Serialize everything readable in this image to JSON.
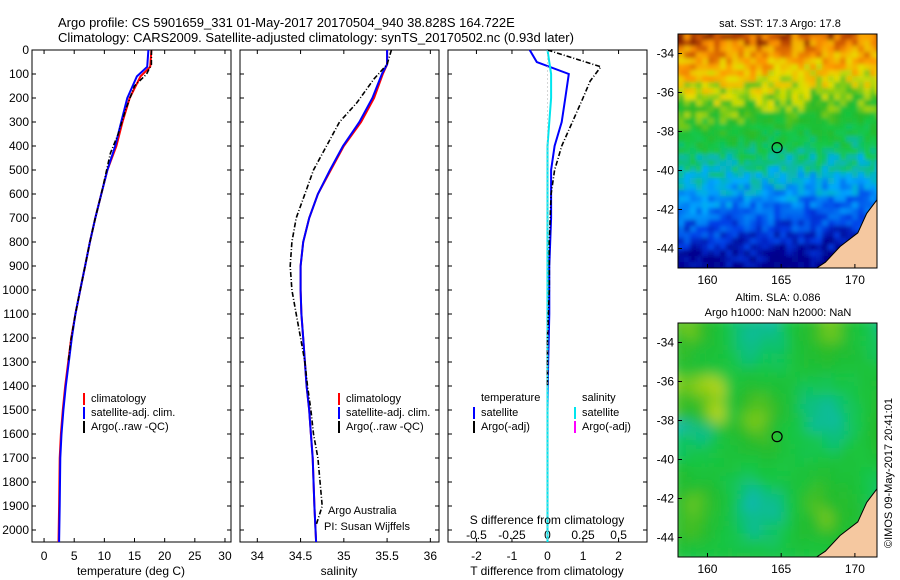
{
  "header": {
    "line1": "Argo profile: CS 5901659_331 01-May-2017 20170504_940 38.828S 164.722E",
    "line2": "Climatology: CARS2009. Satellite-adjusted climatology: synTS_20170502.nc (0.93d later)"
  },
  "colors": {
    "climatology": "#ff0000",
    "satellite": "#0000ff",
    "argo": "#000000",
    "salinity_satellite": "#00e5ee",
    "salinity_argo": "#ff00ff",
    "land": "#f5c8a0"
  },
  "chart_data": [
    {
      "type": "line",
      "xlabel": "temperature (deg C)",
      "xlim": [
        -2,
        31
      ],
      "ylim": [
        0,
        2050
      ],
      "xticks": [
        "0",
        "5",
        "10",
        "15",
        "20",
        "25",
        "30"
      ],
      "yticks": [
        "0",
        "100",
        "200",
        "300",
        "400",
        "500",
        "600",
        "700",
        "800",
        "900",
        "1000",
        "1100",
        "1200",
        "1300",
        "1400",
        "1500",
        "1600",
        "1700",
        "1800",
        "1900",
        "2000"
      ],
      "legend": [
        "climatology",
        "satellite-adj. clim.",
        "Argo(..raw -QC)"
      ],
      "series": [
        {
          "name": "climatology",
          "x": [
            17.8,
            17.6,
            16.0,
            14.2,
            13.0,
            12.0,
            10.5,
            9.5,
            8.5,
            7.6,
            6.8,
            6.0,
            5.2,
            4.5,
            4.0,
            3.5,
            3.1,
            2.8,
            2.6,
            2.5,
            2.4
          ],
          "y": [
            0,
            70,
            110,
            200,
            300,
            400,
            500,
            600,
            700,
            800,
            900,
            1000,
            1100,
            1200,
            1300,
            1400,
            1500,
            1600,
            1700,
            1900,
            2050
          ]
        },
        {
          "name": "satellite-adj. clim.",
          "x": [
            17.3,
            17.1,
            15.4,
            13.8,
            12.8,
            11.8,
            10.5,
            9.5,
            8.5,
            7.6,
            6.8,
            6.0,
            5.2,
            4.6,
            4.1,
            3.6,
            3.2,
            2.9,
            2.7,
            2.6,
            2.5
          ],
          "y": [
            0,
            70,
            110,
            200,
            300,
            400,
            500,
            600,
            700,
            800,
            900,
            1000,
            1100,
            1200,
            1300,
            1400,
            1500,
            1600,
            1700,
            1900,
            2050
          ]
        },
        {
          "name": "Argo(..raw -QC)",
          "x": [
            17.8,
            17.8,
            17.0,
            15.0,
            13.5,
            12.3,
            11.0,
            9.5,
            8.5,
            7.6,
            6.8,
            6.0,
            5.2,
            4.5,
            4.0
          ],
          "y": [
            0,
            60,
            100,
            150,
            250,
            350,
            430,
            600,
            700,
            800,
            900,
            1000,
            1100,
            1200,
            1300
          ]
        }
      ]
    },
    {
      "type": "line",
      "xlabel": "salinity",
      "xlim": [
        33.8,
        36.1
      ],
      "ylim": [
        0,
        2050
      ],
      "xticks": [
        "34",
        "34.5",
        "35",
        "35.5",
        "36"
      ],
      "legend": [
        "climatology",
        "satellite-adj. clim.",
        "Argo(..raw -QC)"
      ],
      "annotations": [
        "Argo Australia",
        "PI: Susan Wijffels"
      ],
      "series": [
        {
          "name": "climatology",
          "x": [
            35.5,
            35.5,
            35.45,
            35.35,
            35.2,
            35.0,
            34.85,
            34.7,
            34.6,
            34.53,
            34.5,
            34.5,
            34.51,
            34.53,
            34.55,
            34.57,
            34.6,
            34.62,
            34.64,
            34.66,
            34.68
          ],
          "y": [
            0,
            60,
            100,
            200,
            300,
            400,
            500,
            600,
            700,
            800,
            900,
            1000,
            1100,
            1200,
            1300,
            1400,
            1500,
            1600,
            1700,
            1900,
            2050
          ]
        },
        {
          "name": "satellite-adj. clim.",
          "x": [
            35.5,
            35.5,
            35.44,
            35.33,
            35.18,
            34.99,
            34.84,
            34.7,
            34.6,
            34.53,
            34.5,
            34.5,
            34.51,
            34.53,
            34.55,
            34.57,
            34.6,
            34.62,
            34.64,
            34.66,
            34.68
          ],
          "y": [
            0,
            60,
            100,
            200,
            300,
            400,
            500,
            600,
            700,
            800,
            900,
            1000,
            1100,
            1200,
            1300,
            1400,
            1500,
            1600,
            1700,
            1900,
            2050
          ]
        },
        {
          "name": "Argo(..raw -QC)",
          "x": [
            35.55,
            35.5,
            35.35,
            35.15,
            34.95,
            34.8,
            34.65,
            34.55,
            34.45,
            34.4,
            34.38,
            34.4,
            34.45,
            34.5,
            34.55,
            34.58,
            34.62,
            34.65,
            34.7,
            34.75,
            34.68
          ],
          "y": [
            0,
            60,
            120,
            220,
            300,
            400,
            500,
            600,
            700,
            800,
            900,
            1000,
            1100,
            1200,
            1300,
            1400,
            1500,
            1600,
            1700,
            1900,
            1980
          ]
        }
      ]
    },
    {
      "type": "line",
      "xlabel": "T difference from climatology",
      "title": "S difference from climatology",
      "xlim": [
        -2.8,
        2.8
      ],
      "ylim": [
        0,
        2050
      ],
      "xticks": [
        "-2",
        "-1",
        "0",
        "1",
        "2"
      ],
      "top_xticks": [
        "-0.5",
        "-0.25",
        "0",
        "0.25",
        "0.5"
      ],
      "legend_groups": [
        {
          "header": "temperature",
          "items": [
            "satellite",
            "Argo(-adj)"
          ]
        },
        {
          "header": "salinity",
          "items": [
            "satellite",
            "Argo(-adj)"
          ]
        }
      ],
      "series": [
        {
          "name": "temperature satellite",
          "x": [
            -0.5,
            -0.3,
            0.6,
            0.5,
            0.4,
            0.2,
            0.1,
            0.1,
            0.05,
            0.05,
            0.02,
            0.0,
            0.0,
            0.0,
            0.0
          ],
          "y": [
            0,
            50,
            100,
            200,
            300,
            400,
            500,
            700,
            900,
            1100,
            1300,
            1500,
            1700,
            1900,
            2050
          ]
        },
        {
          "name": "salinity satellite",
          "x": [
            0.0,
            0.05,
            0.1,
            0.1,
            0.05,
            0.0,
            0.0,
            0.0,
            0.0,
            0.0,
            0.0
          ],
          "y": [
            0,
            50,
            100,
            200,
            300,
            400,
            600,
            800,
            1200,
            1600,
            2050
          ]
        },
        {
          "name": "temperature Argo(-adj)",
          "x": [
            0.0,
            1.5,
            1.2,
            1.0,
            0.7,
            0.4,
            0.3,
            0.2,
            0.1,
            0.05,
            0.05,
            0.0,
            0.0
          ],
          "y": [
            0,
            70,
            130,
            200,
            300,
            400,
            450,
            500,
            600,
            800,
            1000,
            1200,
            1400
          ]
        }
      ]
    },
    {
      "type": "heatmap",
      "title": "sat. SST: 17.3 Argo: 17.8",
      "xticks": [
        "160",
        "165",
        "170"
      ],
      "yticks": [
        "-34",
        "-36",
        "-38",
        "-40",
        "-42",
        "-44"
      ],
      "xlim": [
        158,
        171.5
      ],
      "ylim": [
        -45,
        -33
      ],
      "marker": {
        "lon": 164.722,
        "lat": -38.828
      }
    },
    {
      "type": "heatmap",
      "title": "Altim. SLA: 0.086",
      "subtitle": "Argo h1000: NaN h2000: NaN",
      "xticks": [
        "160",
        "165",
        "170"
      ],
      "yticks": [
        "-34",
        "-36",
        "-38",
        "-40",
        "-42",
        "-44"
      ],
      "xlim": [
        158,
        171.5
      ],
      "ylim": [
        -45,
        -33
      ],
      "marker": {
        "lon": 164.722,
        "lat": -38.828
      }
    }
  ],
  "credit": "©IMOS 09-May-2017 20:41:01"
}
